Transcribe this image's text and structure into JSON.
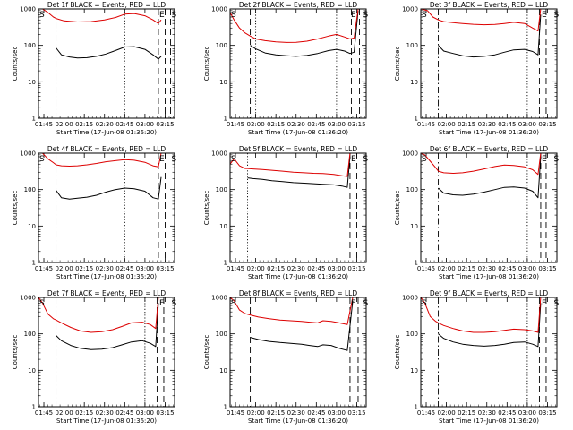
{
  "figure": {
    "common": {
      "ylabel": "Counts/sec",
      "xlabel": "Start Time (17-Jun-08 01:36:20)",
      "yticks": [
        "1",
        "10",
        "100",
        "1000"
      ],
      "ylim": [
        1,
        1000
      ],
      "y_scale": "log"
    },
    "colors": {
      "events": "#000000",
      "lld": "#dd0000",
      "axes": "#000000"
    }
  },
  "chart_data": [
    {
      "type": "line",
      "title": "Det 1f BLACK = Events, RED = LLD",
      "xticks": [
        "01:45",
        "02:00",
        "02:15",
        "02:30",
        "02:45",
        "03:00",
        "03:15"
      ],
      "xlim": [
        101,
        202
      ],
      "markers": [
        {
          "label": "S",
          "t": 101
        },
        {
          "label": "E",
          "t": 190
        },
        {
          "label": "S",
          "t": 199
        }
      ],
      "lines": [
        {
          "t": 101,
          "style": "solid"
        },
        {
          "t": 114,
          "style": "dashdot"
        },
        {
          "t": 165,
          "style": "dotted"
        },
        {
          "t": 190,
          "style": "dashed"
        },
        {
          "t": 195,
          "style": "dashed"
        },
        {
          "t": 199,
          "style": "dashed"
        }
      ],
      "series": [
        {
          "name": "Events",
          "x": [
            114,
            118,
            124,
            130,
            137,
            144,
            151,
            158,
            165,
            172,
            180,
            186,
            190,
            192
          ],
          "y": [
            85,
            55,
            48,
            45,
            46,
            50,
            58,
            72,
            90,
            92,
            78,
            55,
            42,
            50
          ]
        },
        {
          "name": "LLD",
          "x": [
            101,
            104,
            108,
            112,
            114,
            120,
            130,
            140,
            150,
            158,
            165,
            172,
            180,
            186,
            190,
            192
          ],
          "y": [
            1000,
            1000,
            800,
            600,
            550,
            470,
            440,
            450,
            500,
            580,
            720,
            750,
            650,
            500,
            400,
            500
          ]
        }
      ]
    },
    {
      "type": "line",
      "title": "Det 2f BLACK = Events, RED = LLD",
      "xticks": [
        "01:45",
        "02:00",
        "02:15",
        "02:30",
        "02:45",
        "03:00",
        "03:15"
      ],
      "xlim": [
        101,
        202
      ],
      "markers": [
        {
          "label": "S",
          "t": 101
        },
        {
          "label": "E",
          "t": 190
        },
        {
          "label": "S",
          "t": 199
        }
      ],
      "lines": [
        {
          "t": 101,
          "style": "solid"
        },
        {
          "t": 116,
          "style": "dashed"
        },
        {
          "t": 120,
          "style": "dotted"
        },
        {
          "t": 180,
          "style": "dotted"
        },
        {
          "t": 191,
          "style": "dashed"
        },
        {
          "t": 197,
          "style": "dashed"
        }
      ],
      "series": [
        {
          "name": "Events",
          "x": [
            116,
            120,
            127,
            135,
            143,
            150,
            158,
            166,
            174,
            180,
            186,
            190,
            193,
            196
          ],
          "y": [
            100,
            80,
            62,
            55,
            52,
            50,
            53,
            60,
            72,
            78,
            70,
            60,
            65,
            900
          ]
        },
        {
          "name": "LLD",
          "x": [
            101,
            104,
            108,
            112,
            116,
            120,
            127,
            135,
            143,
            150,
            158,
            166,
            174,
            180,
            186,
            190,
            193,
            196
          ],
          "y": [
            800,
            500,
            300,
            220,
            180,
            150,
            135,
            125,
            120,
            122,
            130,
            150,
            180,
            200,
            170,
            150,
            160,
            1000
          ]
        }
      ]
    },
    {
      "type": "line",
      "title": "Det 3f BLACK = Events, RED = LLD",
      "xticks": [
        "01:45",
        "02:00",
        "02:15",
        "02:30",
        "02:45",
        "03:00",
        "03:15"
      ],
      "xlim": [
        101,
        202
      ],
      "markers": [
        {
          "label": "S",
          "t": 101
        },
        {
          "label": "E",
          "t": 190
        },
        {
          "label": "S",
          "t": 199
        }
      ],
      "lines": [
        {
          "t": 101,
          "style": "solid"
        },
        {
          "t": 114,
          "style": "dashdot"
        },
        {
          "t": 180,
          "style": "dotted"
        },
        {
          "t": 189,
          "style": "dashed"
        },
        {
          "t": 194,
          "style": "dashed"
        }
      ],
      "series": [
        {
          "name": "Events",
          "x": [
            114,
            118,
            125,
            132,
            140,
            148,
            156,
            163,
            170,
            178,
            184,
            188,
            190
          ],
          "y": [
            100,
            70,
            60,
            52,
            48,
            50,
            55,
            65,
            75,
            78,
            68,
            55,
            700
          ]
        },
        {
          "name": "LLD",
          "x": [
            101,
            106,
            110,
            114,
            118,
            125,
            132,
            140,
            148,
            156,
            163,
            170,
            178,
            184,
            188,
            190
          ],
          "y": [
            1000,
            900,
            600,
            500,
            450,
            420,
            400,
            380,
            370,
            375,
            400,
            430,
            400,
            300,
            250,
            1000
          ]
        }
      ]
    },
    {
      "type": "line",
      "title": "Det 4f BLACK = Events, RED = LLD",
      "xticks": [
        "01:45",
        "02:00",
        "02:15",
        "02:30",
        "02:45",
        "03:00",
        "03:15"
      ],
      "xlim": [
        101,
        202
      ],
      "markers": [
        {
          "label": "S",
          "t": 101
        },
        {
          "label": "E",
          "t": 190
        },
        {
          "label": "S",
          "t": 199
        }
      ],
      "lines": [
        {
          "t": 101,
          "style": "solid"
        },
        {
          "t": 114,
          "style": "dashdot"
        },
        {
          "t": 165,
          "style": "dotted"
        },
        {
          "t": 190,
          "style": "dashed"
        },
        {
          "t": 195,
          "style": "dashed"
        }
      ],
      "series": [
        {
          "name": "Events",
          "x": [
            114,
            118,
            124,
            130,
            137,
            144,
            151,
            158,
            165,
            172,
            180,
            186,
            190,
            192
          ],
          "y": [
            95,
            60,
            55,
            58,
            62,
            70,
            85,
            100,
            110,
            105,
            90,
            60,
            55,
            220
          ]
        },
        {
          "name": "LLD",
          "x": [
            101,
            104,
            108,
            112,
            114,
            118,
            124,
            130,
            137,
            144,
            151,
            158,
            165,
            172,
            180,
            186,
            190,
            192
          ],
          "y": [
            1000,
            1000,
            700,
            550,
            480,
            450,
            440,
            450,
            480,
            520,
            580,
            620,
            660,
            640,
            560,
            450,
            420,
            1000
          ]
        }
      ]
    },
    {
      "type": "line",
      "title": "Det 5f BLACK = Events, RED = LLD",
      "xticks": [
        "01:45",
        "02:00",
        "02:15",
        "02:30",
        "02:45",
        "03:00",
        "03:15"
      ],
      "xlim": [
        101,
        202
      ],
      "markers": [
        {
          "label": "S",
          "t": 101
        },
        {
          "label": "E",
          "t": 190
        },
        {
          "label": "S",
          "t": 199
        }
      ],
      "lines": [
        {
          "t": 101,
          "style": "solid"
        },
        {
          "t": 114,
          "style": "dotted"
        },
        {
          "t": 190,
          "style": "dashed"
        },
        {
          "t": 195,
          "style": "dashed"
        }
      ],
      "series": [
        {
          "name": "Events",
          "x": [
            114,
            118,
            125,
            132,
            140,
            148,
            156,
            163,
            170,
            178,
            184,
            188,
            190
          ],
          "y": [
            210,
            200,
            190,
            175,
            165,
            155,
            150,
            145,
            140,
            135,
            125,
            115,
            800
          ]
        },
        {
          "name": "LLD",
          "x": [
            101,
            104,
            108,
            112,
            114,
            118,
            125,
            132,
            140,
            148,
            156,
            163,
            170,
            178,
            184,
            188,
            190
          ],
          "y": [
            500,
            700,
            450,
            380,
            380,
            370,
            355,
            340,
            320,
            300,
            290,
            280,
            275,
            260,
            240,
            230,
            1000
          ]
        }
      ]
    },
    {
      "type": "line",
      "title": "Det 6f BLACK = Events, RED = LLD",
      "xticks": [
        "01:45",
        "02:00",
        "02:15",
        "02:30",
        "02:45",
        "03:00",
        "03:15"
      ],
      "xlim": [
        101,
        202
      ],
      "markers": [
        {
          "label": "S",
          "t": 101
        },
        {
          "label": "E",
          "t": 190
        },
        {
          "label": "S",
          "t": 199
        }
      ],
      "lines": [
        {
          "t": 101,
          "style": "solid"
        },
        {
          "t": 114,
          "style": "dashdot"
        },
        {
          "t": 180,
          "style": "dotted"
        },
        {
          "t": 190,
          "style": "dashed"
        },
        {
          "t": 194,
          "style": "dashed"
        }
      ],
      "series": [
        {
          "name": "Events",
          "x": [
            114,
            118,
            125,
            132,
            140,
            148,
            156,
            163,
            170,
            178,
            184,
            188,
            190
          ],
          "y": [
            110,
            80,
            72,
            70,
            75,
            85,
            100,
            115,
            118,
            110,
            90,
            60,
            800
          ]
        },
        {
          "name": "LLD",
          "x": [
            101,
            104,
            108,
            112,
            114,
            118,
            125,
            132,
            140,
            148,
            156,
            163,
            170,
            178,
            184,
            188,
            190
          ],
          "y": [
            1000,
            900,
            600,
            400,
            320,
            290,
            280,
            290,
            320,
            370,
            430,
            470,
            460,
            420,
            350,
            260,
            1000
          ]
        }
      ]
    },
    {
      "type": "line",
      "title": "Det 7f BLACK = Events, RED = LLD",
      "xticks": [
        "01:45",
        "02:00",
        "02:15",
        "02:30",
        "02:45",
        "03:00",
        "03:15"
      ],
      "xlim": [
        101,
        202
      ],
      "markers": [
        {
          "label": "S",
          "t": 101
        },
        {
          "label": "E",
          "t": 190
        },
        {
          "label": "S",
          "t": 199
        }
      ],
      "lines": [
        {
          "t": 101,
          "style": "solid"
        },
        {
          "t": 114,
          "style": "dashdot"
        },
        {
          "t": 180,
          "style": "dotted"
        },
        {
          "t": 189,
          "style": "dashed"
        },
        {
          "t": 194,
          "style": "dashed"
        }
      ],
      "series": [
        {
          "name": "Events",
          "x": [
            114,
            118,
            125,
            132,
            140,
            148,
            156,
            163,
            170,
            178,
            184,
            188,
            190
          ],
          "y": [
            90,
            65,
            48,
            40,
            37,
            38,
            42,
            50,
            60,
            65,
            55,
            45,
            700
          ]
        },
        {
          "name": "LLD",
          "x": [
            101,
            104,
            108,
            112,
            114,
            118,
            125,
            132,
            140,
            148,
            156,
            163,
            170,
            178,
            184,
            188,
            190
          ],
          "y": [
            1000,
            700,
            350,
            260,
            240,
            200,
            150,
            120,
            110,
            115,
            130,
            160,
            200,
            210,
            180,
            140,
            1000
          ]
        }
      ]
    },
    {
      "type": "line",
      "title": "Det 8f BLACK = Events, RED = LLD",
      "xticks": [
        "01:45",
        "02:00",
        "02:15",
        "02:30",
        "02:45",
        "03:00",
        "03:15"
      ],
      "xlim": [
        101,
        202
      ],
      "markers": [
        {
          "label": "S",
          "t": 101
        },
        {
          "label": "E",
          "t": 190
        },
        {
          "label": "S",
          "t": 199
        }
      ],
      "lines": [
        {
          "t": 101,
          "style": "solid"
        },
        {
          "t": 116,
          "style": "dashed"
        },
        {
          "t": 190,
          "style": "dashed"
        },
        {
          "t": 196,
          "style": "dashed"
        }
      ],
      "series": [
        {
          "name": "Events",
          "x": [
            116,
            122,
            130,
            138,
            146,
            154,
            160,
            166,
            170,
            176,
            182,
            188,
            192
          ],
          "y": [
            80,
            70,
            62,
            58,
            55,
            52,
            48,
            45,
            50,
            48,
            40,
            35,
            800
          ]
        },
        {
          "name": "LLD",
          "x": [
            101,
            104,
            108,
            112,
            116,
            122,
            130,
            138,
            146,
            154,
            160,
            166,
            170,
            176,
            182,
            188,
            192
          ],
          "y": [
            1000,
            800,
            450,
            360,
            330,
            290,
            260,
            240,
            230,
            220,
            210,
            200,
            230,
            220,
            200,
            180,
            1000
          ]
        }
      ]
    },
    {
      "type": "line",
      "title": "Det 9f BLACK = Events, RED = LLD",
      "xticks": [
        "01:45",
        "02:00",
        "02:15",
        "02:30",
        "02:45",
        "03:00",
        "03:15"
      ],
      "xlim": [
        101,
        202
      ],
      "markers": [
        {
          "label": "S",
          "t": 101
        },
        {
          "label": "E",
          "t": 190
        },
        {
          "label": "S",
          "t": 199
        }
      ],
      "lines": [
        {
          "t": 101,
          "style": "solid"
        },
        {
          "t": 114,
          "style": "dashdot"
        },
        {
          "t": 180,
          "style": "dotted"
        },
        {
          "t": 189,
          "style": "dashed"
        },
        {
          "t": 194,
          "style": "dashed"
        }
      ],
      "series": [
        {
          "name": "Events",
          "x": [
            114,
            118,
            125,
            132,
            140,
            148,
            156,
            163,
            170,
            178,
            184,
            188,
            190
          ],
          "y": [
            100,
            75,
            60,
            52,
            48,
            46,
            48,
            52,
            58,
            60,
            52,
            45,
            700
          ]
        },
        {
          "name": "LLD",
          "x": [
            101,
            104,
            108,
            112,
            114,
            118,
            125,
            132,
            140,
            148,
            156,
            163,
            170,
            178,
            184,
            188,
            190
          ],
          "y": [
            1000,
            700,
            300,
            220,
            200,
            170,
            140,
            120,
            110,
            110,
            115,
            125,
            135,
            130,
            120,
            110,
            1000
          ]
        }
      ]
    }
  ]
}
